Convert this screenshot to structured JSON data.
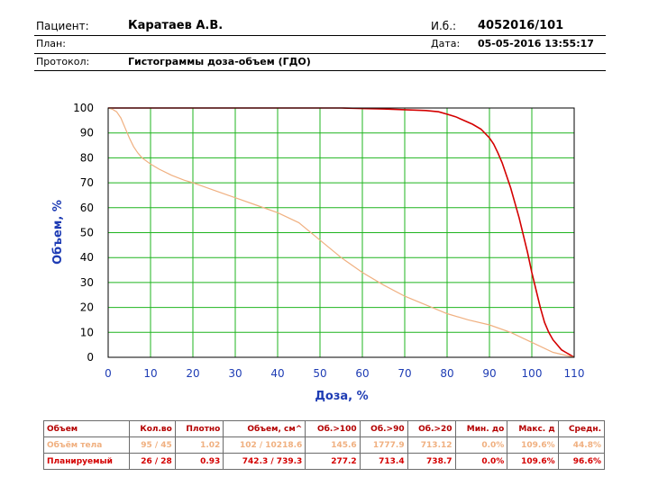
{
  "header": {
    "patient_label": "Пациент:",
    "patient_name": "Каратаев А.В.",
    "id_label": "И.б.:",
    "id_value": "4052016/101",
    "plan_label": "План:",
    "date_label": "Дата:",
    "date_value": "05-05-2016 13:55:17",
    "protocol_label": "Протокол:",
    "protocol_value": "Гистограммы доза-объем (ГДО)"
  },
  "chart_data": {
    "type": "line",
    "xlabel": "Доза, %",
    "ylabel": "Объем, %",
    "xlim": [
      0,
      110
    ],
    "ylim": [
      0,
      100
    ],
    "x_ticks": [
      0,
      10,
      20,
      30,
      40,
      50,
      60,
      70,
      80,
      90,
      100,
      110
    ],
    "y_ticks": [
      0,
      10,
      20,
      30,
      40,
      50,
      60,
      70,
      80,
      90,
      100
    ],
    "grid": true,
    "colors": {
      "ptv": "#d40000",
      "body": "#f0b080",
      "frame": "#000000"
    },
    "series": [
      {
        "x": [
          0,
          55,
          60,
          65,
          70,
          75,
          78,
          80,
          82,
          84,
          86,
          88,
          90,
          91,
          92,
          93,
          94,
          95,
          96,
          97,
          98,
          99,
          100,
          101,
          102,
          103,
          104,
          105,
          106,
          107,
          108,
          109,
          110
        ],
        "y": [
          100,
          100,
          99.8,
          99.6,
          99.3,
          99,
          98.5,
          97.5,
          96.5,
          95,
          93.5,
          91.5,
          88,
          85.5,
          82,
          78,
          73,
          68,
          62,
          56,
          49,
          42,
          34,
          27,
          20,
          14,
          10,
          7,
          5,
          3,
          2,
          1,
          0
        ]
      },
      {
        "x": [
          0,
          1,
          2,
          3,
          4,
          5,
          6,
          7,
          8,
          10,
          12,
          15,
          18,
          20,
          25,
          30,
          35,
          40,
          45,
          50,
          55,
          60,
          65,
          70,
          75,
          80,
          85,
          90,
          95,
          100,
          105,
          110
        ],
        "y": [
          100,
          99.5,
          98.5,
          96,
          92,
          88,
          84.5,
          82,
          80,
          77.5,
          75.5,
          73,
          71,
          70,
          67,
          64,
          61,
          58,
          54,
          47,
          40,
          34,
          29,
          24.5,
          21,
          17.5,
          15,
          13,
          10,
          6,
          2,
          0
        ]
      }
    ]
  },
  "table": {
    "headers": [
      "Объем",
      "Кол.во",
      "Плотно",
      "Объем, см^",
      "Об.>100",
      "Об.>90",
      "Об.>20",
      "Мин. до",
      "Макс. д",
      "Средн."
    ],
    "rows": [
      {
        "color": "#f0b080",
        "cells": [
          "Объём тела",
          "95 / 45",
          "1.02",
          "102 / 10218.6",
          "145.6",
          "1777.9",
          "713.12",
          "0.0%",
          "109.6%",
          "44.8%"
        ]
      },
      {
        "color": "#d40000",
        "cells": [
          "Планируемый",
          "26 / 28",
          "0.93",
          "742.3 / 739.3",
          "277.2",
          "713.4",
          "738.7",
          "0.0%",
          "109.6%",
          "96.6%"
        ]
      }
    ]
  }
}
